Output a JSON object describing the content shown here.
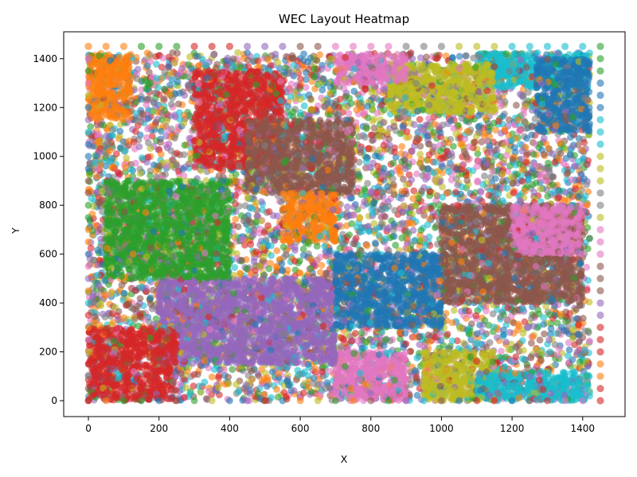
{
  "chart_data": {
    "type": "scatter",
    "title": "WEC Layout Heatmap",
    "xlabel": "X",
    "ylabel": "Y",
    "xlim": [
      -70,
      1520
    ],
    "ylim": [
      -65,
      1510
    ],
    "xticks": [
      0,
      200,
      400,
      600,
      800,
      1000,
      1200,
      1400
    ],
    "yticks": [
      0,
      200,
      400,
      600,
      800,
      1000,
      1200,
      1400
    ],
    "grid": false,
    "legend": "none",
    "marker_alpha": 0.6,
    "palette": [
      "#1f77b4",
      "#ff7f0e",
      "#2ca02c",
      "#d62728",
      "#9467bd",
      "#8c564b",
      "#e377c2",
      "#7f7f7f",
      "#bcbd22",
      "#17becf"
    ],
    "domain": {
      "x": [
        0,
        1420
      ],
      "y": [
        0,
        1425
      ]
    },
    "fixed_rows": {
      "top_row": {
        "y": 1450,
        "x": [
          0,
          50,
          100,
          150,
          200,
          250,
          300,
          350,
          400,
          450,
          500,
          550,
          600,
          650,
          700,
          750,
          800,
          850,
          900,
          950,
          1000,
          1050,
          1100,
          1150,
          1200,
          1250,
          1300,
          1350,
          1400,
          1450
        ],
        "colors": [
          "#ff7f0e",
          "#ff7f0e",
          "#ff7f0e",
          "#2ca02c",
          "#2ca02c",
          "#2ca02c",
          "#d62728",
          "#d62728",
          "#d62728",
          "#9467bd",
          "#9467bd",
          "#9467bd",
          "#8c564b",
          "#8c564b",
          "#e377c2",
          "#e377c2",
          "#e377c2",
          "#e377c2",
          "#7f7f7f",
          "#7f7f7f",
          "#7f7f7f",
          "#bcbd22",
          "#bcbd22",
          "#bcbd22",
          "#17becf",
          "#17becf",
          "#17becf",
          "#17becf",
          "#17becf",
          "#2ca02c"
        ]
      },
      "right_column": {
        "x": 1450,
        "y": [
          1400,
          1350,
          1300,
          1250,
          1200,
          1150,
          1100,
          1050,
          1000,
          950,
          900,
          850,
          800,
          750,
          700,
          650,
          600,
          550,
          500,
          450,
          400,
          350,
          300,
          250,
          200,
          150,
          100,
          50,
          0
        ],
        "colors": [
          "#2ca02c",
          "#2ca02c",
          "#1f77b4",
          "#1f77b4",
          "#1f77b4",
          "#17becf",
          "#17becf",
          "#17becf",
          "#bcbd22",
          "#bcbd22",
          "#bcbd22",
          "#7f7f7f",
          "#7f7f7f",
          "#bcbd22",
          "#e377c2",
          "#e377c2",
          "#e377c2",
          "#8c564b",
          "#8c564b",
          "#8c564b",
          "#9467bd",
          "#9467bd",
          "#d62728",
          "#d62728",
          "#d62728",
          "#ff7f0e",
          "#ff7f0e",
          "#d62728",
          "#d62728"
        ]
      }
    },
    "regions": [
      {
        "color": "#17becf",
        "x": [
          1100,
          1420
        ],
        "y": [
          1280,
          1425
        ]
      },
      {
        "color": "#1f77b4",
        "x": [
          1270,
          1420
        ],
        "y": [
          1100,
          1400
        ]
      },
      {
        "color": "#bcbd22",
        "x": [
          850,
          1150
        ],
        "y": [
          1180,
          1380
        ]
      },
      {
        "color": "#e377c2",
        "x": [
          700,
          900
        ],
        "y": [
          1300,
          1420
        ]
      },
      {
        "color": "#d62728",
        "x": [
          300,
          550
        ],
        "y": [
          950,
          1350
        ]
      },
      {
        "color": "#8c564b",
        "x": [
          450,
          750
        ],
        "y": [
          850,
          1150
        ]
      },
      {
        "color": "#ff7f0e",
        "x": [
          0,
          120
        ],
        "y": [
          1150,
          1420
        ]
      },
      {
        "color": "#ff7f0e",
        "x": [
          550,
          700
        ],
        "y": [
          650,
          850
        ]
      },
      {
        "color": "#8c564b",
        "x": [
          1000,
          1400
        ],
        "y": [
          400,
          800
        ]
      },
      {
        "color": "#e377c2",
        "x": [
          1200,
          1400
        ],
        "y": [
          600,
          800
        ]
      },
      {
        "color": "#bcbd22",
        "x": [
          950,
          1150
        ],
        "y": [
          0,
          200
        ]
      },
      {
        "color": "#17becf",
        "x": [
          1100,
          1420
        ],
        "y": [
          0,
          120
        ]
      },
      {
        "color": "#e377c2",
        "x": [
          700,
          900
        ],
        "y": [
          0,
          200
        ]
      },
      {
        "color": "#9467bd",
        "x": [
          200,
          700
        ],
        "y": [
          150,
          500
        ]
      },
      {
        "color": "#d62728",
        "x": [
          0,
          250
        ],
        "y": [
          0,
          300
        ]
      },
      {
        "color": "#2ca02c",
        "x": [
          50,
          400
        ],
        "y": [
          500,
          900
        ]
      },
      {
        "color": "#1f77b4",
        "x": [
          700,
          1000
        ],
        "y": [
          300,
          600
        ]
      }
    ]
  }
}
